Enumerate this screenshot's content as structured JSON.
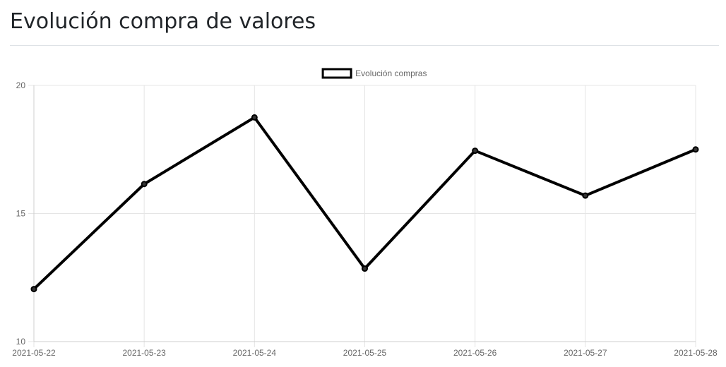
{
  "page": {
    "title": "Evolución compra de valores"
  },
  "chart_data": {
    "type": "line",
    "title": "",
    "xlabel": "",
    "ylabel": "",
    "x": [
      "2021-05-22",
      "2021-05-23",
      "2021-05-24",
      "2021-05-25",
      "2021-05-26",
      "2021-05-27",
      "2021-05-28"
    ],
    "series": [
      {
        "name": "Evolución compras",
        "values": [
          12.05,
          16.15,
          18.75,
          12.85,
          17.45,
          15.7,
          17.5
        ],
        "color": "#000000"
      }
    ],
    "ylim": [
      10,
      20
    ],
    "yticks": [
      10,
      15,
      20
    ],
    "grid": true,
    "legend_position": "top"
  }
}
